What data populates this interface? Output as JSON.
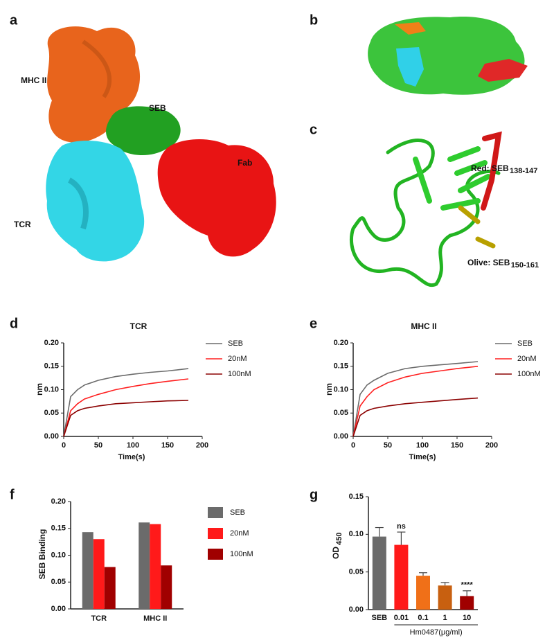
{
  "panel_letters": [
    "a",
    "b",
    "c",
    "d",
    "e",
    "f",
    "g"
  ],
  "structure": {
    "a_labels": [
      "MHC II",
      "SEB",
      "Fab",
      "TCR"
    ],
    "c_labels": [
      {
        "text": "Red: SEB",
        "sub": "138-147"
      },
      {
        "text": "Olive: SEB",
        "sub": "150-161"
      }
    ]
  },
  "chart_data": [
    {
      "type": "line",
      "title": "TCR",
      "xlabel": "Time(s)",
      "ylabel": "nm",
      "x": [
        0,
        10,
        20,
        30,
        50,
        75,
        100,
        125,
        150,
        180
      ],
      "series": [
        {
          "name": "SEB",
          "color": "#6b6b6b",
          "values": [
            0,
            0.085,
            0.1,
            0.11,
            0.12,
            0.128,
            0.133,
            0.137,
            0.14,
            0.145
          ]
        },
        {
          "name": "20nM",
          "color": "#ff2020",
          "values": [
            0,
            0.055,
            0.07,
            0.08,
            0.09,
            0.1,
            0.107,
            0.113,
            0.118,
            0.123
          ]
        },
        {
          "name": "100nM",
          "color": "#8b0000",
          "values": [
            0,
            0.045,
            0.055,
            0.06,
            0.065,
            0.07,
            0.072,
            0.074,
            0.076,
            0.077
          ]
        }
      ],
      "xlim": [
        0,
        200
      ],
      "xticks": [
        0,
        50,
        100,
        150,
        200
      ],
      "ylim": [
        0,
        0.2
      ],
      "yticks": [
        {
          "value": 0,
          "label": "0.00"
        },
        {
          "value": 0.05,
          "label": "0.05"
        },
        {
          "value": 0.1,
          "label": "0.10"
        },
        {
          "value": 0.15,
          "label": "0.15"
        },
        {
          "value": 0.2,
          "label": "0.20"
        }
      ],
      "legend": "right"
    },
    {
      "type": "line",
      "title": "MHC II",
      "xlabel": "Time(s)",
      "ylabel": "nm",
      "x": [
        0,
        10,
        20,
        30,
        50,
        75,
        100,
        125,
        150,
        180
      ],
      "series": [
        {
          "name": "SEB",
          "color": "#6b6b6b",
          "values": [
            0,
            0.09,
            0.11,
            0.12,
            0.135,
            0.145,
            0.15,
            0.153,
            0.156,
            0.16
          ]
        },
        {
          "name": "20nM",
          "color": "#ff2020",
          "values": [
            0,
            0.065,
            0.085,
            0.1,
            0.115,
            0.127,
            0.135,
            0.14,
            0.145,
            0.15
          ]
        },
        {
          "name": "100nM",
          "color": "#8b0000",
          "values": [
            0,
            0.045,
            0.055,
            0.06,
            0.065,
            0.07,
            0.073,
            0.076,
            0.079,
            0.082
          ]
        }
      ],
      "xlim": [
        0,
        200
      ],
      "xticks": [
        0,
        50,
        100,
        150,
        200
      ],
      "ylim": [
        0,
        0.2
      ],
      "yticks": [
        {
          "value": 0,
          "label": "0.00"
        },
        {
          "value": 0.05,
          "label": "0.05"
        },
        {
          "value": 0.1,
          "label": "0.10"
        },
        {
          "value": 0.15,
          "label": "0.15"
        },
        {
          "value": 0.2,
          "label": "0.20"
        }
      ],
      "legend": "right"
    },
    {
      "type": "groupedbar",
      "ylabel": "SEB Binding",
      "categories": [
        "TCR",
        "MHC II"
      ],
      "series": [
        {
          "name": "SEB",
          "color": "#6b6b6b",
          "values": [
            0.143,
            0.161
          ]
        },
        {
          "name": "20nM",
          "color": "#ff1a1a",
          "values": [
            0.13,
            0.158
          ]
        },
        {
          "name": "100nM",
          "color": "#a00000",
          "values": [
            0.078,
            0.081
          ]
        }
      ],
      "ylim": [
        0,
        0.2
      ],
      "yticks": [
        {
          "value": 0,
          "label": "0.00"
        },
        {
          "value": 0.05,
          "label": "0.05"
        },
        {
          "value": 0.1,
          "label": "0.10"
        },
        {
          "value": 0.15,
          "label": "0.15"
        },
        {
          "value": 0.2,
          "label": "0.20"
        }
      ],
      "legend": "right"
    },
    {
      "type": "errorbar",
      "ylabel": "OD",
      "ylabel_subscript": "450",
      "categories": [
        "SEB",
        "0.01",
        "0.1",
        "1",
        "10"
      ],
      "values": [
        0.097,
        0.086,
        0.045,
        0.032,
        0.018
      ],
      "errors": [
        0.012,
        0.017,
        0.004,
        0.004,
        0.007
      ],
      "colors": [
        "#6b6b6b",
        "#ff1a1a",
        "#f07018",
        "#c86010",
        "#a00000"
      ],
      "value_annotations": [
        null,
        "ns",
        null,
        null,
        "****"
      ],
      "group_label": "Hm0487(μg/ml)",
      "ylim": [
        0,
        0.15
      ],
      "yticks": [
        {
          "value": 0,
          "label": "0.00"
        },
        {
          "value": 0.05,
          "label": "0.05"
        },
        {
          "value": 0.1,
          "label": "0.10"
        },
        {
          "value": 0.15,
          "label": "0.15"
        }
      ]
    }
  ]
}
